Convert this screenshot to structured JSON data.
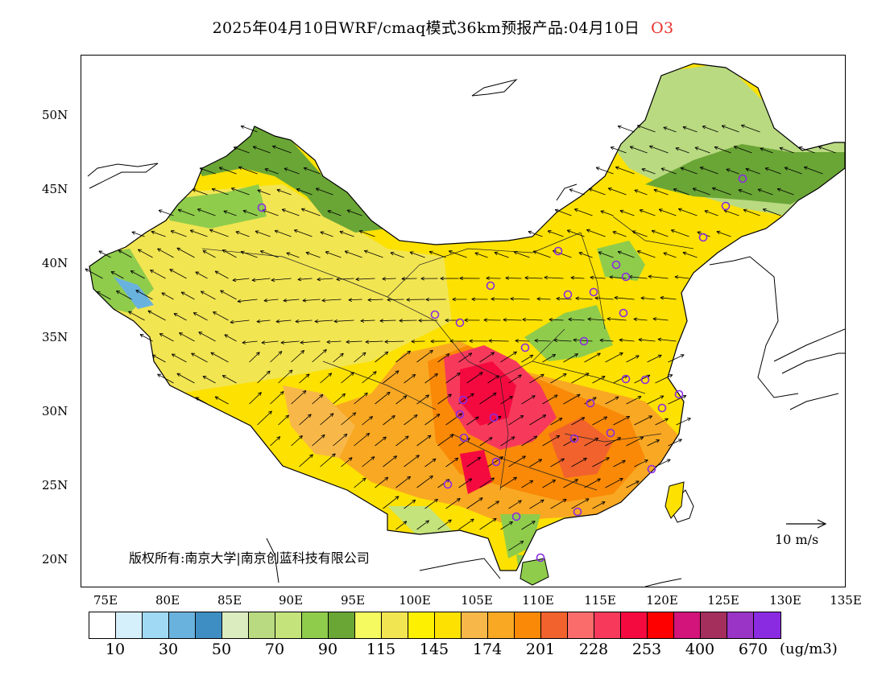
{
  "title": {
    "main": "2025年04月10日WRF/cmaq模式36km预报产品:04月10日",
    "pollutant": "O3"
  },
  "axes": {
    "lat_ticks": [
      "50N",
      "45N",
      "40N",
      "35N",
      "30N",
      "25N",
      "20N"
    ],
    "lon_ticks": [
      "75E",
      "80E",
      "85E",
      "90E",
      "95E",
      "100E",
      "105E",
      "110E",
      "115E",
      "120E",
      "125E",
      "130E",
      "135E"
    ]
  },
  "colorbar": {
    "colors": [
      "#ffffff",
      "#d6f0fb",
      "#9fd9f3",
      "#6ab2de",
      "#3f8ec3",
      "#dbecbf",
      "#b9da80",
      "#c4e37b",
      "#8fcc4c",
      "#6aa636",
      "#f4fa5f",
      "#f2e552",
      "#fdf000",
      "#fde100",
      "#f8b849",
      "#f9a823",
      "#f98907",
      "#f1622d",
      "#fa6b6b",
      "#f73a5c",
      "#f50a3f",
      "#ff0000",
      "#d3147a",
      "#a42f5c",
      "#9a34c6",
      "#8a2be2"
    ],
    "labels": [
      "10",
      "30",
      "50",
      "70",
      "90",
      "115",
      "145",
      "174",
      "201",
      "228",
      "253",
      "400",
      "670"
    ],
    "unit": "(ug/m3)"
  },
  "copyright": "版权所有:南京大学|南京创蓝科技有限公司",
  "wind_reference": "10 m/s",
  "map_colors": {
    "base_yellow": "#fde100",
    "light_yellow": "#f2e552",
    "green_dark": "#6aa636",
    "green_light": "#b9da80",
    "blue_lake": "#6ab2de",
    "orange": "#f9a823",
    "red": "#f50a3f",
    "magenta": "#d3147a"
  }
}
